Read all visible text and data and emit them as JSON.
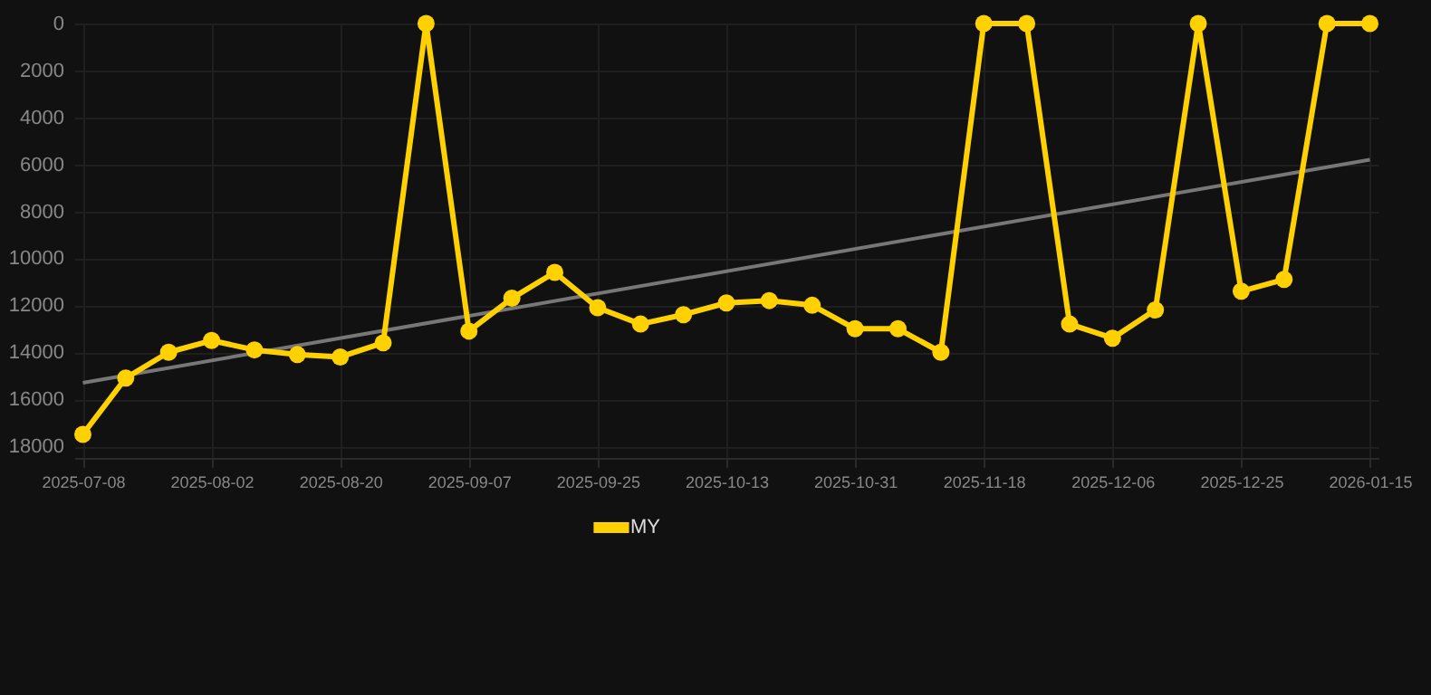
{
  "chart_data": {
    "type": "line",
    "categories": [
      "2025-07-08",
      null,
      null,
      "2025-08-02",
      null,
      null,
      "2025-08-20",
      null,
      null,
      "2025-09-07",
      null,
      null,
      "2025-09-25",
      null,
      null,
      "2025-10-13",
      null,
      null,
      "2025-10-31",
      null,
      null,
      "2025-11-18",
      null,
      null,
      "2025-12-06",
      null,
      null,
      "2025-12-25",
      null,
      null,
      "2026-01-15"
    ],
    "series": [
      {
        "name": "MY",
        "color": "#ffd100",
        "values": [
          17500,
          15100,
          14000,
          13500,
          13900,
          14100,
          14200,
          13600,
          0,
          13100,
          11700,
          10600,
          12100,
          12800,
          12400,
          11900,
          11800,
          12000,
          13000,
          13000,
          14000,
          0,
          0,
          12800,
          13400,
          12200,
          0,
          11400,
          10900,
          0,
          0
        ]
      },
      {
        "type": "line",
        "color": "#777777",
        "marker": "none",
        "values": [
          15300,
          null,
          null,
          null,
          null,
          null,
          null,
          null,
          null,
          null,
          null,
          null,
          null,
          null,
          null,
          null,
          null,
          null,
          null,
          null,
          null,
          null,
          null,
          null,
          null,
          null,
          null,
          null,
          null,
          null,
          5800
        ]
      }
    ],
    "ylim": [
      18500,
      0
    ],
    "yticks": [
      0,
      2000,
      4000,
      6000,
      8000,
      10000,
      12000,
      14000,
      16000,
      18000
    ],
    "grid": true,
    "legend": "bottom",
    "marker": "circle",
    "line_style": "solid"
  }
}
